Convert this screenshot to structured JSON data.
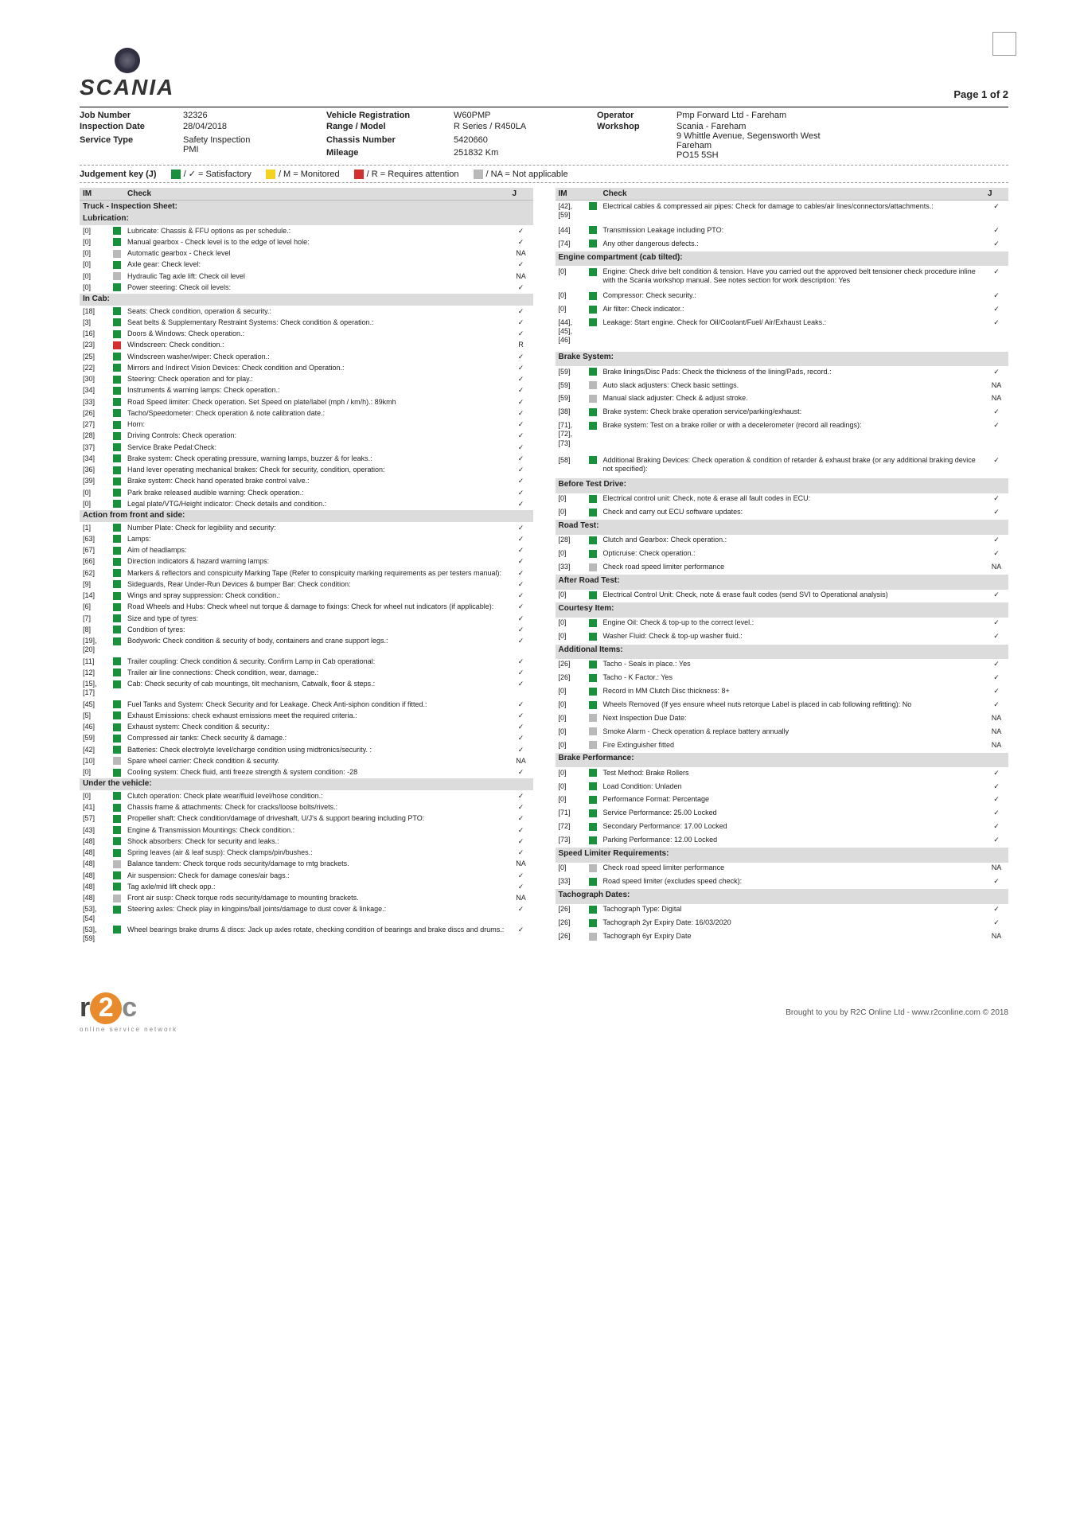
{
  "page_num": "Page 1 of 2",
  "logo_text": "SCANIA",
  "header": {
    "job_number_lbl": "Job Number",
    "job_number": "32326",
    "vehicle_reg_lbl": "Vehicle Registration",
    "vehicle_reg": "W60PMP",
    "operator_lbl": "Operator",
    "operator": "Pmp Forward Ltd - Fareham",
    "insp_date_lbl": "Inspection Date",
    "insp_date": "28/04/2018",
    "range_lbl": "Range / Model",
    "range": "R Series / R450LA",
    "workshop_lbl": "Workshop",
    "workshop": "Scania - Fareham",
    "workshop_addr": "9 Whittle Avenue, Segensworth West\nFareham\nPO15 5SH",
    "service_lbl": "Service Type",
    "service": "Safety Inspection\nPMI",
    "chassis_lbl": "Chassis Number",
    "chassis": "5420660",
    "mileage_lbl": "Mileage",
    "mileage": "251832 Km"
  },
  "judgement": {
    "lbl": "Judgement key (J)",
    "sat": "/ ✓ = Satisfactory",
    "mon": "/ M = Monitored",
    "req": "/ R = Requires attention",
    "na": "/ NA = Not applicable"
  },
  "col_headers": {
    "im": "IM",
    "check": "Check",
    "j": "J"
  },
  "left": [
    {
      "section": "Truck - Inspection Sheet:"
    },
    {
      "section": "Lubrication:"
    },
    {
      "im": "[0]",
      "mk": "g",
      "desc": "Lubricate: Chassis & FFU options as per schedule.:",
      "j": "✓"
    },
    {
      "im": "[0]",
      "mk": "g",
      "desc": "Manual gearbox - Check level is to the edge of level hole:",
      "j": "✓"
    },
    {
      "im": "[0]",
      "mk": "gr",
      "desc": "Automatic gearbox - Check level",
      "j": "NA"
    },
    {
      "im": "[0]",
      "mk": "g",
      "desc": "Axle gear: Check level:",
      "j": "✓"
    },
    {
      "im": "[0]",
      "mk": "gr",
      "desc": "Hydraulic Tag axle lift: Check oil level",
      "j": "NA"
    },
    {
      "im": "[0]",
      "mk": "g",
      "desc": "Power steering: Check oil levels:",
      "j": "✓"
    },
    {
      "section": "In Cab:"
    },
    {
      "im": "[18]",
      "mk": "g",
      "desc": "Seats: Check condition, operation & security.:",
      "j": "✓"
    },
    {
      "im": "[3]",
      "mk": "g",
      "desc": "Seat belts & Supplementary Restraint Systems: Check condition & operation.:",
      "j": "✓"
    },
    {
      "im": "[16]",
      "mk": "g",
      "desc": "Doors & Windows: Check operation.:",
      "j": "✓"
    },
    {
      "im": "[23]",
      "mk": "r",
      "desc": "Windscreen: Check condition.:",
      "j": "R"
    },
    {
      "im": "[25]",
      "mk": "g",
      "desc": "Windscreen washer/wiper: Check operation.:",
      "j": "✓"
    },
    {
      "im": "[22]",
      "mk": "g",
      "desc": "Mirrors and Indirect Vision Devices: Check condition and Operation.:",
      "j": "✓"
    },
    {
      "im": "[30]",
      "mk": "g",
      "desc": "Steering: Check operation and for play.:",
      "j": "✓"
    },
    {
      "im": "[34]",
      "mk": "g",
      "desc": "Instruments & warning lamps: Check operation.:",
      "j": "✓"
    },
    {
      "im": "[33]",
      "mk": "g",
      "desc": "Road Speed limiter: Check operation. Set Speed on plate/label (mph / km/h).: 89kmh",
      "j": "✓"
    },
    {
      "im": "[26]",
      "mk": "g",
      "desc": "Tacho/Speedometer: Check operation & note calibration date.:",
      "j": "✓"
    },
    {
      "im": "[27]",
      "mk": "g",
      "desc": "Horn:",
      "j": "✓"
    },
    {
      "im": "[28]",
      "mk": "g",
      "desc": "Driving Controls: Check operation:",
      "j": "✓"
    },
    {
      "im": "[37]",
      "mk": "g",
      "desc": "Service Brake Pedal:Check:",
      "j": "✓"
    },
    {
      "im": "[34]",
      "mk": "g",
      "desc": "Brake system: Check operating pressure, warning lamps, buzzer & for leaks.:",
      "j": "✓"
    },
    {
      "im": "[36]",
      "mk": "g",
      "desc": "Hand lever operating mechanical brakes: Check for security, condition, operation:",
      "j": "✓"
    },
    {
      "im": "[39]",
      "mk": "g",
      "desc": "Brake system: Check hand operated brake control valve.:",
      "j": "✓"
    },
    {
      "im": "[0]",
      "mk": "g",
      "desc": "Park brake released audible warning: Check operation.:",
      "j": "✓"
    },
    {
      "im": "[0]",
      "mk": "g",
      "desc": "Legal plate/VTG/Height indicator: Check details and condition.:",
      "j": "✓"
    },
    {
      "section": "Action from front and side:"
    },
    {
      "im": "[1]",
      "mk": "g",
      "desc": "Number Plate: Check for legibility and security:",
      "j": "✓"
    },
    {
      "im": "[63]",
      "mk": "g",
      "desc": "Lamps:",
      "j": "✓"
    },
    {
      "im": "[67]",
      "mk": "g",
      "desc": "Aim of headlamps:",
      "j": "✓"
    },
    {
      "im": "[66]",
      "mk": "g",
      "desc": "Direction indicators & hazard warning lamps:",
      "j": "✓"
    },
    {
      "im": "[62]",
      "mk": "g",
      "desc": "Markers & reflectors and conspicuity Marking Tape (Refer to conspicuity marking requirements as per testers manual):",
      "j": "✓"
    },
    {
      "im": "[9]",
      "mk": "g",
      "desc": "Sideguards, Rear Under-Run Devices & bumper Bar: Check condition:",
      "j": "✓"
    },
    {
      "im": "[14]",
      "mk": "g",
      "desc": "Wings and spray suppression: Check condition.:",
      "j": "✓"
    },
    {
      "im": "[6]",
      "mk": "g",
      "desc": "Road Wheels and Hubs: Check wheel nut torque & damage to fixings: Check for wheel nut indicators (if applicable):",
      "j": "✓"
    },
    {
      "im": "[7]",
      "mk": "g",
      "desc": "Size and type of tyres:",
      "j": "✓"
    },
    {
      "im": "[8]",
      "mk": "g",
      "desc": "Condition of tyres:",
      "j": "✓"
    },
    {
      "im": "[19], [20]",
      "mk": "g",
      "desc": "Bodywork: Check condition & security of body, containers and crane support legs.:",
      "j": "✓"
    },
    {
      "im": "[11]",
      "mk": "g",
      "desc": "Trailer coupling: Check condition & security. Confirm Lamp in Cab operational:",
      "j": "✓"
    },
    {
      "im": "[12]",
      "mk": "g",
      "desc": "Trailer air line connections: Check condition, wear, damage.:",
      "j": "✓"
    },
    {
      "im": "[15], [17]",
      "mk": "g",
      "desc": "Cab: Check security of cab mountings, tilt mechanism, Catwalk, floor & steps.:",
      "j": "✓"
    },
    {
      "im": "[45]",
      "mk": "g",
      "desc": "Fuel Tanks and System: Check Security and for Leakage. Check Anti-siphon condition if fitted.:",
      "j": "✓"
    },
    {
      "im": "[5]",
      "mk": "g",
      "desc": "Exhaust Emissions: check exhaust emissions meet the required criteria.:",
      "j": "✓"
    },
    {
      "im": "[46]",
      "mk": "g",
      "desc": "Exhaust system: Check condition & security.:",
      "j": "✓"
    },
    {
      "im": "[59]",
      "mk": "g",
      "desc": "Compressed air tanks: Check security & damage.:",
      "j": "✓"
    },
    {
      "im": "[42]",
      "mk": "g",
      "desc": "Batteries: Check electrolyte level/charge condition using midtronics/security. :",
      "j": "✓"
    },
    {
      "im": "[10]",
      "mk": "gr",
      "desc": "Spare wheel carrier: Check condition & security.",
      "j": "NA"
    },
    {
      "im": "[0]",
      "mk": "g",
      "desc": "Cooling system: Check fluid, anti freeze strength & system condition: -28",
      "j": "✓"
    },
    {
      "section": "Under the vehicle:"
    },
    {
      "im": "[0]",
      "mk": "g",
      "desc": "Clutch operation: Check plate wear/fluid level/hose condition.:",
      "j": "✓"
    },
    {
      "im": "[41]",
      "mk": "g",
      "desc": "Chassis frame & attachments: Check for cracks/loose bolts/rivets.:",
      "j": "✓"
    },
    {
      "im": "[57]",
      "mk": "g",
      "desc": "Propeller shaft: Check condition/damage of driveshaft, U/J's & support bearing including PTO:",
      "j": "✓"
    },
    {
      "im": "[43]",
      "mk": "g",
      "desc": "Engine & Transmission Mountings: Check condition.:",
      "j": "✓"
    },
    {
      "im": "[48]",
      "mk": "g",
      "desc": "Shock absorbers: Check for security and leaks.:",
      "j": "✓"
    },
    {
      "im": "[48]",
      "mk": "g",
      "desc": "Spring leaves (air & leaf susp): Check clamps/pin/bushes.:",
      "j": "✓"
    },
    {
      "im": "[48]",
      "mk": "gr",
      "desc": "Balance tandem: Check torque rods security/damage to mtg brackets.",
      "j": "NA"
    },
    {
      "im": "[48]",
      "mk": "g",
      "desc": "Air suspension: Check for damage cones/air bags.:",
      "j": "✓"
    },
    {
      "im": "[48]",
      "mk": "g",
      "desc": "Tag axle/mid lift check opp.:",
      "j": "✓"
    },
    {
      "im": "[48]",
      "mk": "gr",
      "desc": "Front air susp: Check torque rods security/damage to mounting brackets.",
      "j": "NA"
    },
    {
      "im": "[53], [54]",
      "mk": "g",
      "desc": "Steering axles: Check play in kingpins/ball joints/damage to dust cover & linkage.:",
      "j": "✓"
    },
    {
      "im": "[53], [59]",
      "mk": "g",
      "desc": "Wheel bearings brake drums & discs: Jack up axles rotate, checking condition of bearings and brake discs and drums.:",
      "j": "✓"
    }
  ],
  "right": [
    {
      "im": "[42], [59]",
      "mk": "g",
      "desc": "Electrical cables & compressed air pipes: Check for damage to cables/air lines/connectors/attachments.:",
      "j": "✓"
    },
    {
      "im": "[44]",
      "mk": "g",
      "desc": "Transmission Leakage including PTO:",
      "j": "✓"
    },
    {
      "im": "[74]",
      "mk": "g",
      "desc": "Any other dangerous defects.:",
      "j": "✓"
    },
    {
      "section": "Engine compartment (cab tilted):"
    },
    {
      "im": "[0]",
      "mk": "g",
      "desc": "Engine: Check drive belt condition & tension. Have you carried out the approved belt tensioner check procedure inline with the Scania workshop manual. See notes section for work description: Yes",
      "j": "✓"
    },
    {
      "im": "[0]",
      "mk": "g",
      "desc": "Compressor: Check security.:",
      "j": "✓"
    },
    {
      "im": "[0]",
      "mk": "g",
      "desc": "Air filter: Check indicator.:",
      "j": "✓"
    },
    {
      "im": "[44], [45], [46]",
      "mk": "g",
      "desc": "Leakage: Start engine. Check for Oil/Coolant/Fuel/ Air/Exhaust Leaks.:",
      "j": "✓"
    },
    {
      "section": "Brake System:"
    },
    {
      "im": "[59]",
      "mk": "g",
      "desc": "Brake linings/Disc Pads: Check the thickness of the lining/Pads, record.:",
      "j": "✓"
    },
    {
      "im": "[59]",
      "mk": "gr",
      "desc": "Auto slack adjusters: Check basic settings.",
      "j": "NA"
    },
    {
      "im": "[59]",
      "mk": "gr",
      "desc": "Manual slack adjuster: Check & adjust stroke.",
      "j": "NA"
    },
    {
      "im": "[38]",
      "mk": "g",
      "desc": "Brake system: Check brake operation service/parking/exhaust:",
      "j": "✓"
    },
    {
      "im": "[71], [72], [73]",
      "mk": "g",
      "desc": "Brake system: Test on a brake roller or with a decelerometer (record all readings):",
      "j": "✓"
    },
    {
      "im": "[58]",
      "mk": "g",
      "desc": "Additional Braking Devices: Check operation & condition of retarder & exhaust brake (or any additional braking device not specified):",
      "j": "✓"
    },
    {
      "section": "Before Test Drive:"
    },
    {
      "im": "[0]",
      "mk": "g",
      "desc": "Electrical control unit: Check, note & erase all fault codes in ECU:",
      "j": "✓"
    },
    {
      "im": "[0]",
      "mk": "g",
      "desc": "Check and carry out ECU software updates:",
      "j": "✓"
    },
    {
      "section": "Road Test:"
    },
    {
      "im": "[28]",
      "mk": "g",
      "desc": "Clutch and Gearbox: Check operation.:",
      "j": "✓"
    },
    {
      "im": "[0]",
      "mk": "g",
      "desc": "Opticruise: Check operation.:",
      "j": "✓"
    },
    {
      "im": "[33]",
      "mk": "gr",
      "desc": "Check road speed limiter performance",
      "j": "NA"
    },
    {
      "section": "After Road Test:"
    },
    {
      "im": "[0]",
      "mk": "g",
      "desc": "Electrical Control Unit: Check, note & erase fault codes (send SVI to Operational analysis)",
      "j": "✓"
    },
    {
      "section": "Courtesy Item:"
    },
    {
      "im": "[0]",
      "mk": "g",
      "desc": "Engine Oil: Check & top-up to the correct level.:",
      "j": "✓"
    },
    {
      "im": "[0]",
      "mk": "g",
      "desc": "Washer Fluid: Check & top-up washer fluid.:",
      "j": "✓"
    },
    {
      "section": "Additional Items:"
    },
    {
      "im": "[26]",
      "mk": "g",
      "desc": "Tacho - Seals in place.: Yes",
      "j": "✓"
    },
    {
      "im": "[26]",
      "mk": "g",
      "desc": "Tacho - K Factor.: Yes",
      "j": "✓"
    },
    {
      "im": "[0]",
      "mk": "g",
      "desc": "Record in MM Clutch Disc thickness: 8+",
      "j": "✓"
    },
    {
      "im": "[0]",
      "mk": "g",
      "desc": "Wheels Removed (If yes ensure wheel nuts retorque Label is placed in cab following refitting): No",
      "j": "✓"
    },
    {
      "im": "[0]",
      "mk": "gr",
      "desc": "Next Inspection Due Date:",
      "j": "NA"
    },
    {
      "im": "[0]",
      "mk": "gr",
      "desc": "Smoke Alarm - Check operation & replace battery annually",
      "j": "NA"
    },
    {
      "im": "[0]",
      "mk": "gr",
      "desc": "Fire Extinguisher fitted",
      "j": "NA"
    },
    {
      "section": "Brake Performance:"
    },
    {
      "im": "[0]",
      "mk": "g",
      "desc": "Test Method: Brake Rollers",
      "j": "✓"
    },
    {
      "im": "[0]",
      "mk": "g",
      "desc": "Load Condition: Unladen",
      "j": "✓"
    },
    {
      "im": "[0]",
      "mk": "g",
      "desc": "Performance Format: Percentage",
      "j": "✓"
    },
    {
      "im": "[71]",
      "mk": "g",
      "desc": "Service Performance: 25.00 Locked",
      "j": "✓"
    },
    {
      "im": "[72]",
      "mk": "g",
      "desc": "Secondary Performance: 17.00 Locked",
      "j": "✓"
    },
    {
      "im": "[73]",
      "mk": "g",
      "desc": "Parking Performance: 12.00 Locked",
      "j": "✓"
    },
    {
      "section": "Speed Limiter Requirements:"
    },
    {
      "im": "[0]",
      "mk": "gr",
      "desc": "Check road speed limiter performance",
      "j": "NA"
    },
    {
      "im": "[33]",
      "mk": "g",
      "desc": "Road speed limiter (excludes speed check):",
      "j": "✓"
    },
    {
      "section": "Tachograph Dates:"
    },
    {
      "im": "[26]",
      "mk": "g",
      "desc": "Tachograph Type: Digital",
      "j": "✓"
    },
    {
      "im": "[26]",
      "mk": "g",
      "desc": "Tachograph 2yr Expiry Date: 16/03/2020",
      "j": "✓"
    },
    {
      "im": "[26]",
      "mk": "gr",
      "desc": "Tachograph 6yr Expiry Date",
      "j": "NA"
    }
  ],
  "footer": {
    "r2c_sub": "online service network",
    "credit": "Brought to you by R2C Online Ltd - www.r2conline.com © 2018"
  }
}
